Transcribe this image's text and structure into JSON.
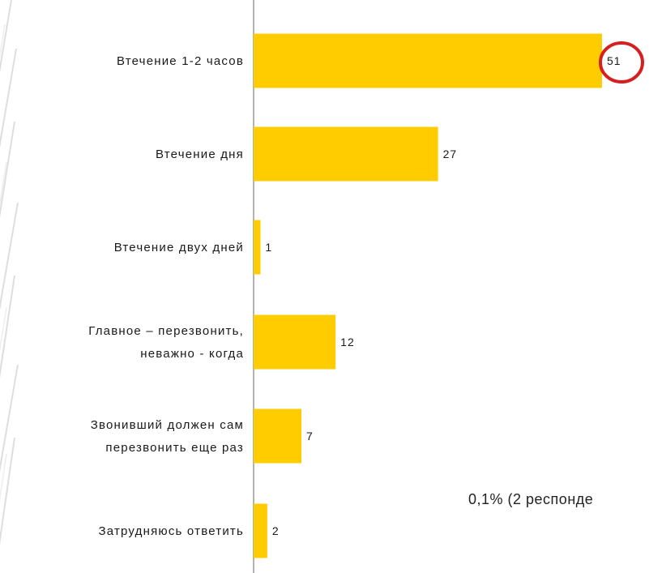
{
  "chart_data": {
    "type": "bar",
    "orientation": "horizontal",
    "categories": [
      [
        "Втечение 1-2 часов"
      ],
      [
        "Втечение дня"
      ],
      [
        "Втечение двух дней"
      ],
      [
        "Главное – перезвонить,",
        "неважно - когда"
      ],
      [
        "Звонивший должен сам",
        "перезвонить еще раз"
      ],
      [
        "Затрудняюсь ответить"
      ]
    ],
    "values": [
      51,
      27,
      1,
      12,
      7,
      2
    ],
    "bar_color": "#FFCC00",
    "highlight_index": 0,
    "highlight_color": "#D62020",
    "axis_color": "#9a9a9a",
    "xlim": [
      0,
      51
    ],
    "grid": false,
    "footnote": "0,1% (2 респонде"
  }
}
